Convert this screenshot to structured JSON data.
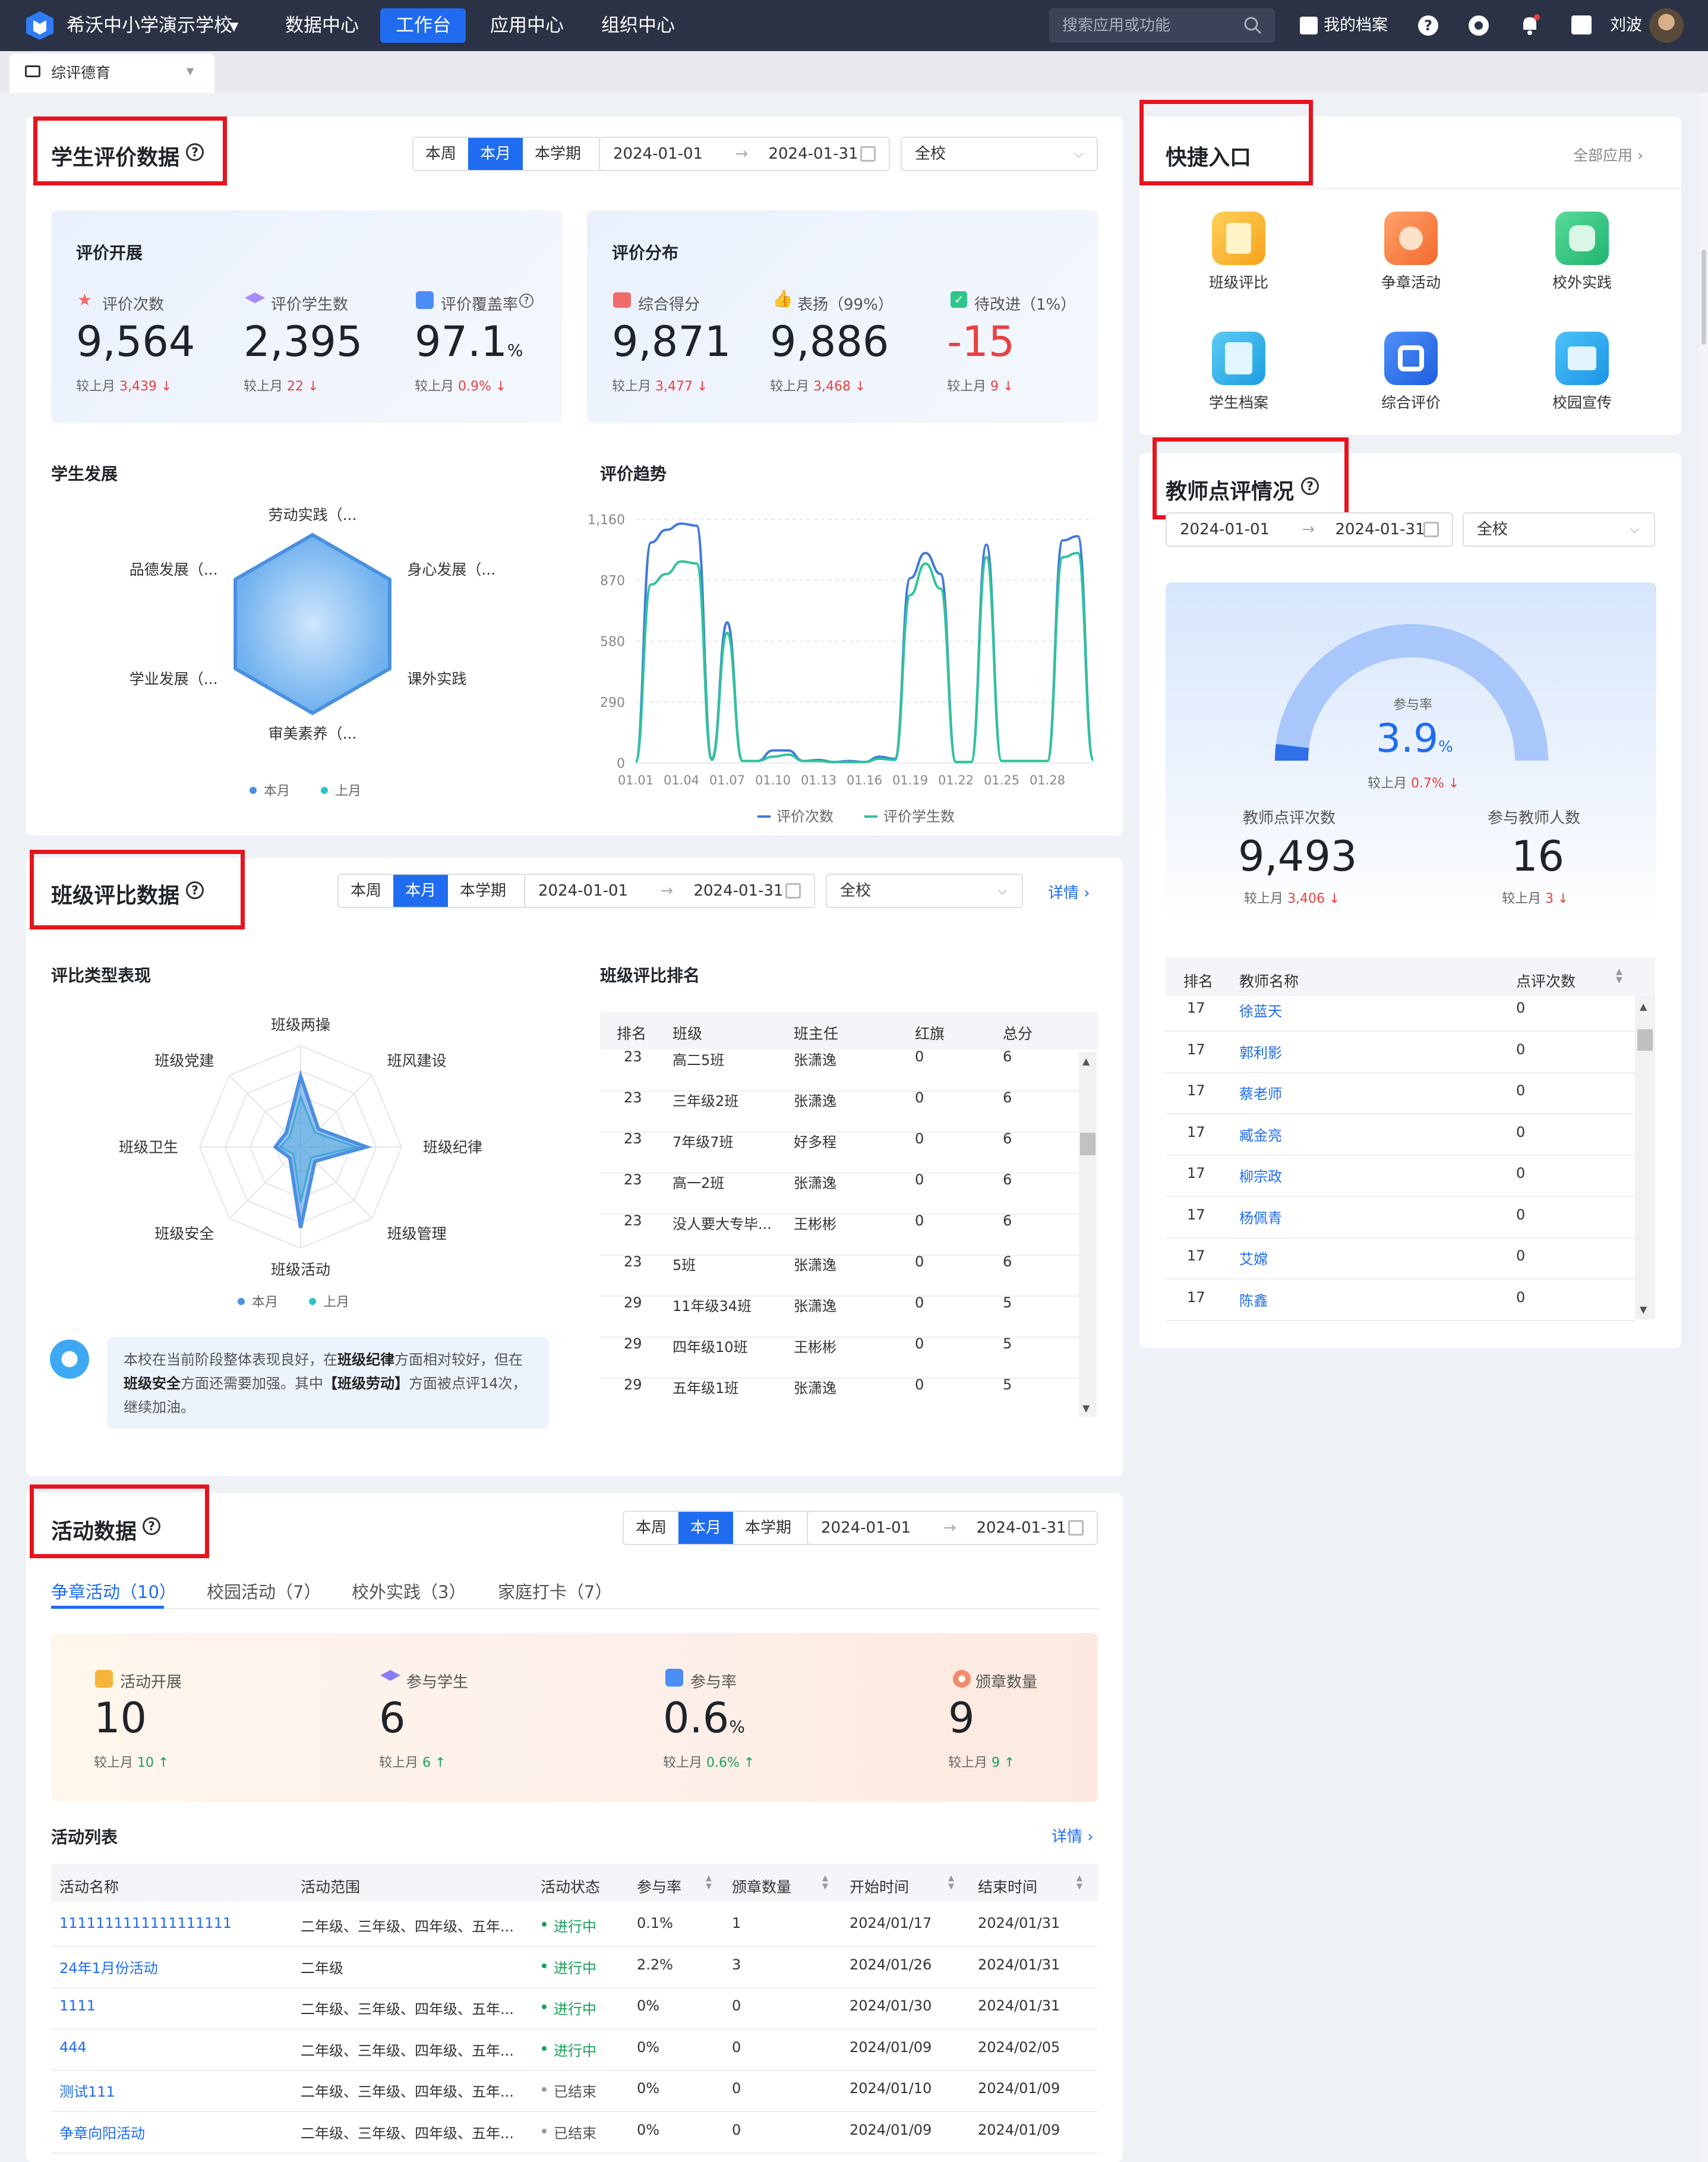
{
  "nav": {
    "school": "希沃中小学演示学校",
    "items": [
      "数据中心",
      "工作台",
      "应用中心",
      "组织中心"
    ],
    "search_placeholder": "搜索应用或功能",
    "archive": "我的档案",
    "user": "刘波"
  },
  "tab": {
    "label": "综评德育"
  },
  "student_eval": {
    "title": "学生评价数据",
    "seg": [
      "本周",
      "本月",
      "本学期"
    ],
    "date_start": "2024-01-01",
    "date_end": "2024-01-31",
    "scope": "全校",
    "dev": {
      "title": "评价开展",
      "stats": [
        {
          "label": "评价次数",
          "value": "9,564",
          "cmp_label": "较上月",
          "cmp": "3,439"
        },
        {
          "label": "评价学生数",
          "value": "2,395",
          "cmp_label": "较上月",
          "cmp": "22"
        },
        {
          "label": "评价覆盖率",
          "value": "97.1",
          "unit": "%",
          "cmp_label": "较上月",
          "cmp": "0.9%"
        }
      ]
    },
    "dist": {
      "title": "评价分布",
      "stats": [
        {
          "label": "综合得分",
          "value": "9,871",
          "cmp_label": "较上月",
          "cmp": "3,477"
        },
        {
          "label": "表扬（99%）",
          "value": "9,886",
          "cmp_label": "较上月",
          "cmp": "3,468"
        },
        {
          "label": "待改进（1%）",
          "value": "-15",
          "cmp_label": "较上月",
          "cmp": "9"
        }
      ]
    },
    "growth_title": "学生发展",
    "trend_title": "评价趋势"
  },
  "class_eval": {
    "title": "班级评比数据",
    "seg": [
      "本周",
      "本月",
      "本学期"
    ],
    "date_start": "2024-01-01",
    "date_end": "2024-01-31",
    "scope": "全校",
    "detail": "详情",
    "radar_title": "评比类型表现",
    "rank_title": "班级评比排名",
    "rank_headers": [
      "排名",
      "班级",
      "班主任",
      "红旗",
      "总分"
    ],
    "rank_rows": [
      [
        "23",
        "高二5班",
        "张潇逸",
        "0",
        "6"
      ],
      [
        "23",
        "三年级2班",
        "张潇逸",
        "0",
        "6"
      ],
      [
        "23",
        "7年级7班",
        "好多程",
        "0",
        "6"
      ],
      [
        "23",
        "高一2班",
        "张潇逸",
        "0",
        "6"
      ],
      [
        "23",
        "没人要大专毕...",
        "王彬彬",
        "0",
        "6"
      ],
      [
        "23",
        "5班",
        "张潇逸",
        "0",
        "6"
      ],
      [
        "29",
        "11年级34班",
        "张潇逸",
        "0",
        "5"
      ],
      [
        "29",
        "四年级10班",
        "王彬彬",
        "0",
        "5"
      ],
      [
        "29",
        "五年级1班",
        "张潇逸",
        "0",
        "5"
      ]
    ],
    "tip_parts": [
      "本校在当前阶段整体表现良好，在",
      "班级纪律",
      "方面相对较好，但在",
      "班级安全",
      "方面还需要加强。其中",
      "【班级劳动】",
      "方面被点评14次，继续加油。"
    ]
  },
  "activity": {
    "title": "活动数据",
    "seg": [
      "本周",
      "本月",
      "本学期"
    ],
    "date_start": "2024-01-01",
    "date_end": "2024-01-31",
    "tabs": [
      "争章活动（10）",
      "校园活动（7）",
      "校外实践（3）",
      "家庭打卡（7）"
    ],
    "stats": [
      {
        "label": "活动开展",
        "value": "10",
        "cmp_label": "较上月",
        "cmp": "10"
      },
      {
        "label": "参与学生",
        "value": "6",
        "cmp_label": "较上月",
        "cmp": "6"
      },
      {
        "label": "参与率",
        "value": "0.6",
        "unit": "%",
        "cmp_label": "较上月",
        "cmp": "0.6%"
      },
      {
        "label": "颁章数量",
        "value": "9",
        "cmp_label": "较上月",
        "cmp": "9"
      }
    ],
    "list_title": "活动列表",
    "detail": "详情",
    "headers": [
      "活动名称",
      "活动范围",
      "活动状态",
      "参与率",
      "颁章数量",
      "开始时间",
      "结束时间"
    ],
    "rows": [
      [
        "1111111111111111111",
        "二年级、三年级、四年级、五年...",
        "进行中",
        "0.1%",
        "1",
        "2024/01/17",
        "2024/01/31"
      ],
      [
        "24年1月份活动",
        "二年级",
        "进行中",
        "2.2%",
        "3",
        "2024/01/26",
        "2024/01/31"
      ],
      [
        "1111",
        "二年级、三年级、四年级、五年...",
        "进行中",
        "0%",
        "0",
        "2024/01/30",
        "2024/01/31"
      ],
      [
        "444",
        "二年级、三年级、四年级、五年...",
        "进行中",
        "0%",
        "0",
        "2024/01/09",
        "2024/02/05"
      ],
      [
        "测试111",
        "二年级、三年级、四年级、五年...",
        "已结束",
        "0%",
        "0",
        "2024/01/10",
        "2024/01/09"
      ],
      [
        "争章向阳活动",
        "二年级、三年级、四年级、五年...",
        "已结束",
        "0%",
        "0",
        "2024/01/09",
        "2024/01/09"
      ]
    ]
  },
  "quick": {
    "title": "快捷入口",
    "all": "全部应用",
    "items": [
      "班级评比",
      "争章活动",
      "校外实践",
      "学生档案",
      "综合评价",
      "校园宣传"
    ]
  },
  "teacher": {
    "title": "教师点评情况",
    "date_start": "2024-01-01",
    "date_end": "2024-01-31",
    "scope": "全校",
    "gauge_label": "参与率",
    "gauge_value": "3.9",
    "gauge_unit": "%",
    "gauge_fraction": 0.039,
    "gauge_cmp_label": "较上月",
    "gauge_cmp": "0.7%",
    "count_label": "教师点评次数",
    "count_value": "9,493",
    "count_cmp_label": "较上月",
    "count_cmp": "3,406",
    "people_label": "参与教师人数",
    "people_value": "16",
    "people_cmp_label": "较上月",
    "people_cmp": "3",
    "headers": [
      "排名",
      "教师名称",
      "点评次数"
    ],
    "rows": [
      [
        "17",
        "徐蓝天",
        "0"
      ],
      [
        "17",
        "郭利影",
        "0"
      ],
      [
        "17",
        "蔡老师",
        "0"
      ],
      [
        "17",
        "臧金亮",
        "0"
      ],
      [
        "17",
        "柳宗政",
        "0"
      ],
      [
        "17",
        "杨佩青",
        "0"
      ],
      [
        "17",
        "艾嫦",
        "0"
      ],
      [
        "17",
        "陈鑫",
        "0"
      ]
    ]
  },
  "chart_data": [
    {
      "type": "radar",
      "title": "学生发展",
      "axes": [
        "劳动实践（...",
        "身心发展（...",
        "课外实践",
        "审美素养（...",
        "学业发展（...",
        "品德发展（..."
      ],
      "series": [
        {
          "name": "本月",
          "values": [
            100,
            100,
            100,
            100,
            100,
            100
          ]
        },
        {
          "name": "上月",
          "values": [
            100,
            100,
            100,
            100,
            100,
            100
          ]
        }
      ]
    },
    {
      "type": "line",
      "title": "评价趋势",
      "x": [
        "01.01",
        "01.02",
        "01.03",
        "01.04",
        "01.05",
        "01.06",
        "01.07",
        "01.08",
        "01.09",
        "01.10",
        "01.11",
        "01.12",
        "01.13",
        "01.14",
        "01.15",
        "01.16",
        "01.17",
        "01.18",
        "01.19",
        "01.20",
        "01.21",
        "01.22",
        "01.23",
        "01.24",
        "01.25",
        "01.26",
        "01.27",
        "01.28",
        "01.29",
        "01.30",
        "01.31"
      ],
      "xticks": [
        "01.01",
        "01.04",
        "01.07",
        "01.10",
        "01.13",
        "01.16",
        "01.19",
        "01.22",
        "01.25",
        "01.28"
      ],
      "yticks": [
        0,
        290,
        580,
        870,
        1160
      ],
      "ylim": [
        0,
        1160
      ],
      "series": [
        {
          "name": "评价次数",
          "values": [
            5,
            1050,
            1110,
            1140,
            1130,
            20,
            670,
            10,
            10,
            60,
            60,
            10,
            15,
            5,
            10,
            5,
            30,
            20,
            880,
            1000,
            900,
            5,
            5,
            1040,
            10,
            10,
            10,
            10,
            1060,
            1080,
            20
          ]
        },
        {
          "name": "评价学生数",
          "values": [
            5,
            850,
            900,
            960,
            950,
            15,
            620,
            10,
            10,
            30,
            40,
            10,
            10,
            5,
            5,
            5,
            20,
            15,
            800,
            950,
            830,
            5,
            5,
            980,
            10,
            10,
            10,
            10,
            980,
            1000,
            15
          ]
        }
      ]
    },
    {
      "type": "radar",
      "title": "评比类型表现",
      "axes": [
        "班级两操",
        "班风建设",
        "班级纪律",
        "班级管理",
        "班级活动",
        "班级安全",
        "班级卫生",
        "班级党建"
      ],
      "series": [
        {
          "name": "本月",
          "values": [
            70,
            25,
            65,
            20,
            80,
            15,
            25,
            20
          ]
        },
        {
          "name": "上月",
          "values": [
            50,
            20,
            55,
            15,
            55,
            10,
            20,
            15
          ]
        }
      ]
    }
  ]
}
